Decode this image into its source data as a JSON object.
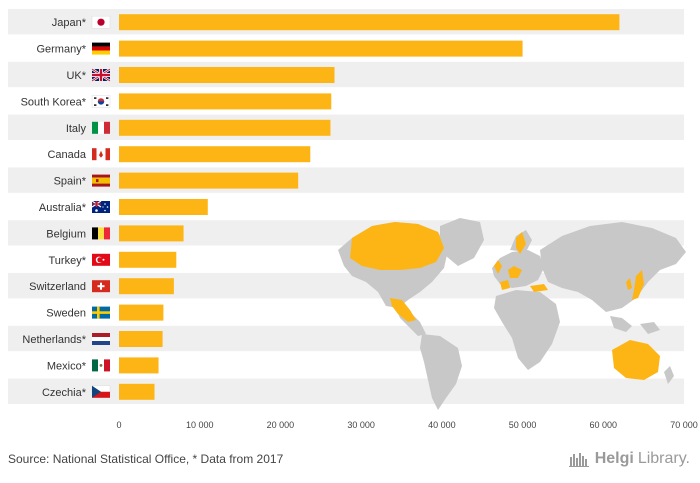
{
  "chart_data": {
    "type": "bar",
    "orientation": "horizontal",
    "categories": [
      "Japan*",
      "Germany*",
      "UK*",
      "South Korea*",
      "Italy",
      "Canada",
      "Spain*",
      "Australia*",
      "Belgium",
      "Turkey*",
      "Switzerland",
      "Sweden",
      "Netherlands*",
      "Mexico*",
      "Czechia*"
    ],
    "values": [
      62000,
      50000,
      26700,
      26300,
      26200,
      23700,
      22200,
      11000,
      8000,
      7100,
      6800,
      5500,
      5400,
      4900,
      4400
    ],
    "flags": [
      "japan-flag-icon",
      "germany-flag-icon",
      "uk-flag-icon",
      "south-korea-flag-icon",
      "italy-flag-icon",
      "canada-flag-icon",
      "spain-flag-icon",
      "australia-flag-icon",
      "belgium-flag-icon",
      "turkey-flag-icon",
      "switzerland-flag-icon",
      "sweden-flag-icon",
      "netherlands-flag-icon",
      "mexico-flag-icon",
      "czechia-flag-icon"
    ],
    "xlim": [
      0,
      70000
    ],
    "xticks": [
      0,
      10000,
      20000,
      30000,
      40000,
      50000,
      60000,
      70000
    ],
    "xtick_labels": [
      "0",
      "10 000",
      "20 000",
      "30 000",
      "40 000",
      "50 000",
      "60 000",
      "70 000"
    ],
    "title": "",
    "xlabel": "",
    "ylabel": "",
    "grid": false,
    "colors": {
      "bar": "#fdb515",
      "row_alt": "#efefef",
      "map_land": "#c8c8c8",
      "map_highlight": "#fdb515"
    }
  },
  "footer": {
    "source": "Source: National Statistical Office, * Data from 2017",
    "brand_bold": "Helgi",
    "brand_light": "Library."
  }
}
